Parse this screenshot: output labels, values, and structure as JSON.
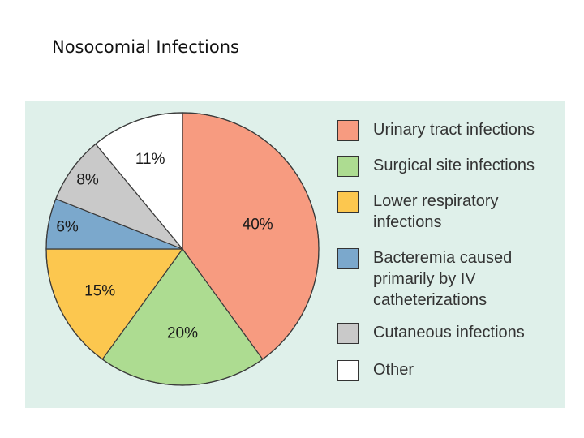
{
  "slide": {
    "title": "Nosocomial Infections"
  },
  "chart_data": {
    "type": "pie",
    "title": "",
    "slices": [
      {
        "label": "Urinary tract infections",
        "value": 40,
        "display": "40%",
        "color": "#f79b80"
      },
      {
        "label": "Surgical site infections",
        "value": 20,
        "display": "20%",
        "color": "#addc91"
      },
      {
        "label": "Lower respiratory infections",
        "value": 15,
        "display": "15%",
        "color": "#fcc74f"
      },
      {
        "label": "Bacteremia caused primarily by IV catheterizations",
        "value": 6,
        "display": "6%",
        "color": "#7ba8cc"
      },
      {
        "label": "Cutaneous infections",
        "value": 8,
        "display": "8%",
        "color": "#c9c9c9"
      },
      {
        "label": "Other",
        "value": 11,
        "display": "11%",
        "color": "#ffffff"
      }
    ],
    "legend_position": "right"
  },
  "legend": {
    "items": [
      {
        "lines": [
          "Urinary tract infections"
        ],
        "color": "#f79b80"
      },
      {
        "lines": [
          "Surgical site infections"
        ],
        "color": "#addc91"
      },
      {
        "lines": [
          "Lower respiratory",
          "infections"
        ],
        "color": "#fcc74f"
      },
      {
        "lines": [
          "Bacteremia caused",
          "primarily by IV",
          "catheterizations"
        ],
        "color": "#7ba8cc"
      },
      {
        "lines": [
          "Cutaneous infections"
        ],
        "color": "#c9c9c9"
      },
      {
        "lines": [
          "Other"
        ],
        "color": "#ffffff"
      }
    ]
  }
}
